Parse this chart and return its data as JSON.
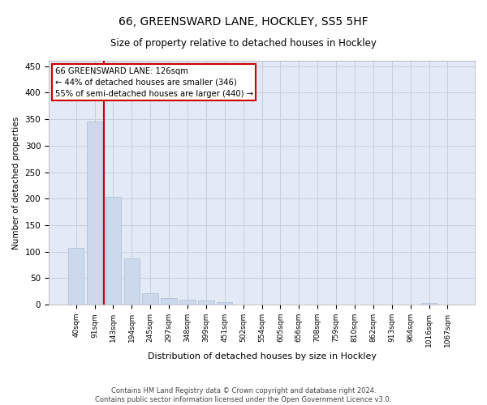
{
  "title_line1": "66, GREENSWARD LANE, HOCKLEY, SS5 5HF",
  "title_line2": "Size of property relative to detached houses in Hockley",
  "xlabel": "Distribution of detached houses by size in Hockley",
  "ylabel": "Number of detached properties",
  "footer_line1": "Contains HM Land Registry data © Crown copyright and database right 2024.",
  "footer_line2": "Contains public sector information licensed under the Open Government Licence v3.0.",
  "bar_labels": [
    "40sqm",
    "91sqm",
    "143sqm",
    "194sqm",
    "245sqm",
    "297sqm",
    "348sqm",
    "399sqm",
    "451sqm",
    "502sqm",
    "554sqm",
    "605sqm",
    "656sqm",
    "708sqm",
    "759sqm",
    "810sqm",
    "862sqm",
    "913sqm",
    "964sqm",
    "1016sqm",
    "1067sqm"
  ],
  "bar_values": [
    107,
    346,
    203,
    88,
    22,
    13,
    9,
    8,
    5,
    0,
    0,
    0,
    0,
    0,
    0,
    0,
    0,
    0,
    0,
    4,
    0
  ],
  "bar_color": "#ccd9ed",
  "bar_edge_color": "#b0c2d8",
  "grid_color": "#c5cfe0",
  "bg_color": "#e4eaf5",
  "annotation_text_line1": "66 GREENSWARD LANE: 126sqm",
  "annotation_text_line2": "← 44% of detached houses are smaller (346)",
  "annotation_text_line3": "55% of semi-detached houses are larger (440) →",
  "annotation_box_facecolor": "#ffffff",
  "annotation_box_edgecolor": "#cc0000",
  "red_line_color": "#cc0000",
  "red_line_x": 1.5,
  "ylim": [
    0,
    460
  ],
  "yticks": [
    0,
    50,
    100,
    150,
    200,
    250,
    300,
    350,
    400,
    450
  ]
}
